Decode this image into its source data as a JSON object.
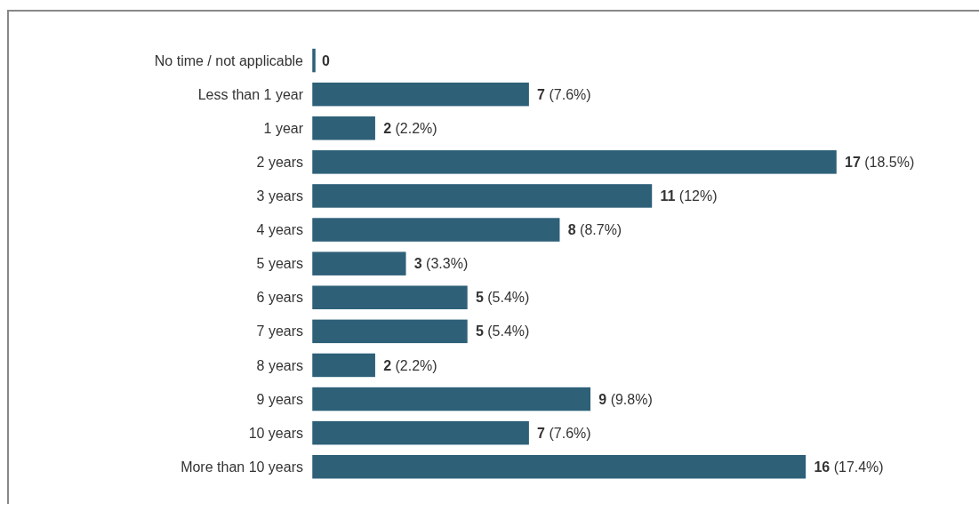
{
  "chart_data": {
    "type": "bar",
    "orientation": "horizontal",
    "categories": [
      "No time / not applicable",
      "Less than 1 year",
      "1 year",
      "2 years",
      "3 years",
      "4 years",
      "5 years",
      "6 years",
      "7 years",
      "8 years",
      "9 years",
      "10 years",
      "More than 10 years"
    ],
    "values": [
      0,
      7,
      2,
      17,
      11,
      8,
      3,
      5,
      5,
      2,
      9,
      7,
      16
    ],
    "value_labels": [
      "0",
      "7 (7.6%)",
      "2 (2.2%)",
      "17 (18.5%)",
      "11 (12%)",
      "8 (8.7%)",
      "3 (3.3%)",
      "5 (5.4%)",
      "5 (5.4%)",
      "2 (2.2%)",
      "9 (9.8%)",
      "7 (7.6%)",
      "16 (17.4%)"
    ],
    "color": "#2e6078"
  }
}
